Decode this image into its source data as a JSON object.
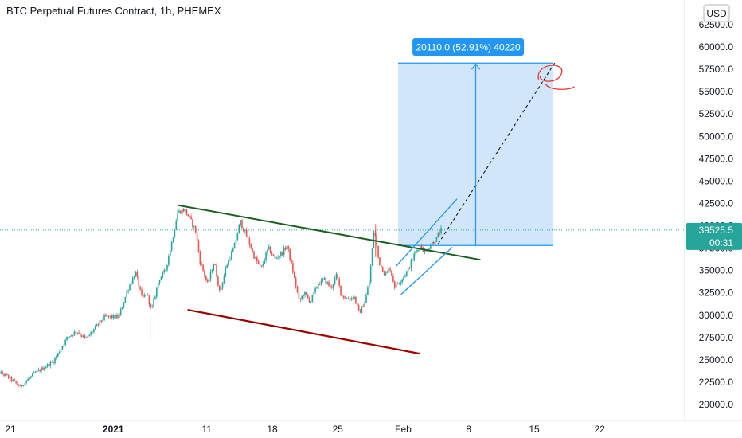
{
  "title": "BTC Perpetual Futures Contract, 1h, PHEMEX",
  "currency_button": "USD",
  "colors": {
    "up": "#26a69a",
    "down": "#ef5350",
    "upper_trendline": "#1b5e20",
    "lower_trendline": "#990000",
    "channel": "#2196f3",
    "projection_box": "#cfe5fb",
    "projection_border": "#2196f3",
    "price_tag": "#26a69a",
    "measure_label_bg": "#2196f3",
    "circle_mark": "#e53935"
  },
  "chart_data": {
    "type": "candlestick",
    "x_axis": {
      "ticks": [
        {
          "label": "21",
          "day": 0,
          "bold": false
        },
        {
          "label": "2021",
          "day": 11,
          "bold": true
        },
        {
          "label": "11",
          "day": 21,
          "bold": false
        },
        {
          "label": "18",
          "day": 28,
          "bold": false
        },
        {
          "label": "25",
          "day": 35,
          "bold": false
        },
        {
          "label": "Feb",
          "day": 42,
          "bold": false
        },
        {
          "label": "8",
          "day": 49,
          "bold": false
        },
        {
          "label": "15",
          "day": 56,
          "bold": false
        },
        {
          "label": "22",
          "day": 63,
          "bold": false
        }
      ]
    },
    "y_axis": {
      "range": [
        19200,
        63300
      ],
      "ticks": [
        "20000.0",
        "22500.0",
        "25000.0",
        "27500.0",
        "30000.0",
        "32500.0",
        "35000.0",
        "37500.0",
        "40000.0",
        "42500.0",
        "45000.0",
        "47500.0",
        "50000.0",
        "52500.0",
        "55000.0",
        "57500.0",
        "60000.0",
        "62500.0"
      ]
    },
    "price_path": [
      [
        -1.7,
        24000
      ],
      [
        0.0,
        23200
      ],
      [
        1.5,
        22000
      ],
      [
        3.0,
        23500
      ],
      [
        5.0,
        24800
      ],
      [
        6.5,
        27500
      ],
      [
        7.5,
        28200
      ],
      [
        8.5,
        27300
      ],
      [
        9.5,
        28600
      ],
      [
        10.5,
        29800
      ],
      [
        12.0,
        29800
      ],
      [
        13.0,
        33000
      ],
      [
        13.8,
        34800
      ],
      [
        14.5,
        31800
      ],
      [
        15.0,
        32500
      ],
      [
        15.5,
        30500
      ],
      [
        16.3,
        34000
      ],
      [
        17.0,
        35000
      ],
      [
        17.8,
        38800
      ],
      [
        18.3,
        41500
      ],
      [
        19.0,
        41800
      ],
      [
        19.5,
        41000
      ],
      [
        20.2,
        39500
      ],
      [
        20.7,
        36000
      ],
      [
        21.5,
        33500
      ],
      [
        22.2,
        36000
      ],
      [
        22.8,
        32500
      ],
      [
        23.5,
        35500
      ],
      [
        24.3,
        37500
      ],
      [
        25.0,
        40500
      ],
      [
        25.8,
        38500
      ],
      [
        26.5,
        36500
      ],
      [
        27.2,
        35200
      ],
      [
        28.0,
        37500
      ],
      [
        28.7,
        36300
      ],
      [
        29.5,
        37000
      ],
      [
        30.0,
        37800
      ],
      [
        30.7,
        34500
      ],
      [
        31.3,
        31500
      ],
      [
        31.8,
        32500
      ],
      [
        32.5,
        31500
      ],
      [
        33.3,
        33500
      ],
      [
        34.0,
        34000
      ],
      [
        34.7,
        33000
      ],
      [
        35.3,
        34500
      ],
      [
        35.8,
        32200
      ],
      [
        36.5,
        31800
      ],
      [
        37.2,
        32000
      ],
      [
        37.7,
        30200
      ],
      [
        38.3,
        31500
      ],
      [
        38.8,
        33800
      ],
      [
        39.3,
        39800
      ],
      [
        39.8,
        36000
      ],
      [
        40.5,
        34500
      ],
      [
        41.0,
        35300
      ],
      [
        41.5,
        33200
      ],
      [
        42.3,
        34100
      ],
      [
        43.0,
        35200
      ],
      [
        43.6,
        36800
      ],
      [
        44.2,
        37800
      ],
      [
        44.8,
        37000
      ],
      [
        45.4,
        38000
      ],
      [
        46.0,
        38600
      ],
      [
        46.4,
        39500
      ]
    ],
    "annotations": {
      "last_price": "39525.5",
      "countdown": "00:31",
      "measure_label": "20110.0 (52.91%) 40220",
      "upper_trendline": {
        "from": [
          18.2,
          42300
        ],
        "to": [
          50.5,
          36200
        ]
      },
      "lower_trendline": {
        "from": [
          19.2,
          30600
        ],
        "to": [
          44.0,
          25700
        ]
      },
      "channel_lower": {
        "from": [
          42.0,
          32300
        ],
        "to": [
          47.5,
          37600
        ]
      },
      "channel_upper": {
        "from": [
          41.5,
          35500
        ],
        "to": [
          48.0,
          43000
        ]
      },
      "projection_box": {
        "x_from": 41.7,
        "x_to": 58.3,
        "y_from": 37800,
        "y_to": 58200
      },
      "measure_arrow": {
        "x": 50.0,
        "from": 37800,
        "to": 58200
      },
      "projection_path": {
        "from": [
          46.0,
          38000
        ],
        "to": [
          58.5,
          58300
        ]
      },
      "circle_mark": {
        "x": 58.0,
        "y": 56900
      }
    }
  }
}
